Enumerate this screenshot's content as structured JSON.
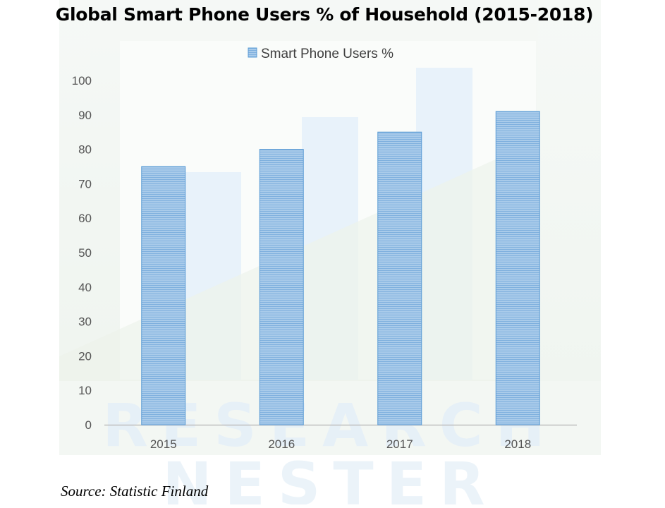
{
  "chart_data": {
    "type": "bar",
    "title": "Global Smart Phone Users % of Household (2015-2018)",
    "categories": [
      "2015",
      "2016",
      "2017",
      "2018"
    ],
    "series": [
      {
        "name": "Smart Phone Users %",
        "values": [
          75,
          80,
          85,
          91
        ]
      }
    ],
    "yticks": [
      "0",
      "10",
      "20",
      "30",
      "40",
      "50",
      "60",
      "70",
      "80",
      "90",
      "100"
    ],
    "ylim": [
      0,
      100
    ],
    "xlabel": "",
    "ylabel": "",
    "legend_position": "top-center",
    "grid": false,
    "bar_color": "#9dc3e6",
    "bar_stroke": "#5b9bd5"
  },
  "watermark": [
    "RESEARCH",
    "NESTER"
  ],
  "source": "Source: Statistic Finland"
}
